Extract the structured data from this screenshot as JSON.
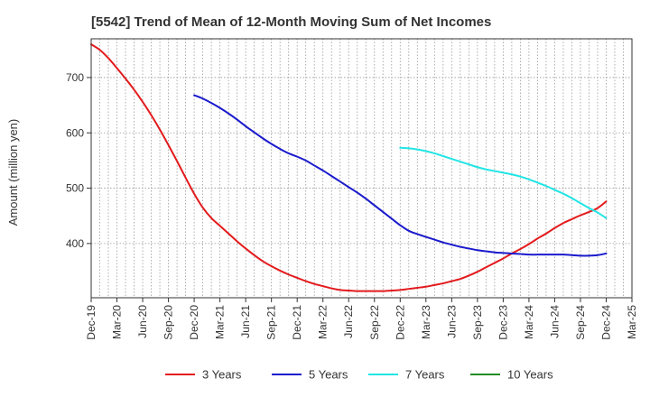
{
  "chart_data": {
    "type": "line",
    "title": "[5542]  Trend of Mean of 12-Month Moving Sum of Net Incomes",
    "xlabel": "",
    "ylabel": "Amount (million yen)",
    "x_tick_labels": [
      "Dec-19",
      "Mar-20",
      "Jun-20",
      "Sep-20",
      "Dec-20",
      "Mar-21",
      "Jun-21",
      "Sep-21",
      "Dec-21",
      "Mar-22",
      "Jun-22",
      "Sep-22",
      "Dec-22",
      "Mar-23",
      "Jun-23",
      "Sep-23",
      "Dec-23",
      "Mar-24",
      "Jun-24",
      "Sep-24",
      "Dec-24",
      "Mar-25"
    ],
    "xlim": [
      "Dec-19",
      "Mar-25"
    ],
    "y_ticks": [
      400,
      500,
      600,
      700
    ],
    "ylim": [
      302,
      770
    ],
    "grid": true,
    "legend_position": "bottom",
    "series": [
      {
        "name": "3 Years",
        "color": "#e31a1c",
        "x": [
          "Dec-19",
          "Jan-20",
          "Feb-20",
          "Mar-20",
          "Apr-20",
          "May-20",
          "Jun-20",
          "Jul-20",
          "Aug-20",
          "Sep-20",
          "Oct-20",
          "Nov-20",
          "Dec-20",
          "Jan-21",
          "Feb-21",
          "Mar-21",
          "Apr-21",
          "May-21",
          "Jun-21",
          "Jul-21",
          "Aug-21",
          "Sep-21",
          "Oct-21",
          "Nov-21",
          "Dec-21",
          "Jan-22",
          "Feb-22",
          "Mar-22",
          "Apr-22",
          "May-22",
          "Jun-22",
          "Jul-22",
          "Aug-22",
          "Sep-22",
          "Oct-22",
          "Nov-22",
          "Dec-22",
          "Jan-23",
          "Feb-23",
          "Mar-23",
          "Apr-23",
          "May-23",
          "Jun-23",
          "Jul-23",
          "Aug-23",
          "Sep-23",
          "Oct-23",
          "Nov-23",
          "Dec-23",
          "Jan-24",
          "Feb-24",
          "Mar-24",
          "Apr-24",
          "May-24",
          "Jun-24",
          "Jul-24",
          "Aug-24",
          "Sep-24",
          "Oct-24",
          "Nov-24",
          "Dec-24"
        ],
        "values": [
          760,
          750,
          735,
          717,
          698,
          678,
          656,
          632,
          606,
          578,
          549,
          519,
          490,
          465,
          446,
          432,
          418,
          404,
          391,
          379,
          368,
          359,
          351,
          344,
          338,
          332,
          327,
          323,
          319,
          316,
          315,
          314,
          314,
          314,
          314,
          315,
          316,
          318,
          320,
          322,
          325,
          328,
          332,
          336,
          342,
          349,
          357,
          365,
          373,
          382,
          390,
          399,
          409,
          418,
          428,
          437,
          444,
          451,
          457,
          464,
          476
        ]
      },
      {
        "name": "5 Years",
        "color": "#1a1acd",
        "x": [
          "Dec-20",
          "Jan-21",
          "Feb-21",
          "Mar-21",
          "Apr-21",
          "May-21",
          "Jun-21",
          "Jul-21",
          "Aug-21",
          "Sep-21",
          "Oct-21",
          "Nov-21",
          "Dec-21",
          "Jan-22",
          "Feb-22",
          "Mar-22",
          "Apr-22",
          "May-22",
          "Jun-22",
          "Jul-22",
          "Aug-22",
          "Sep-22",
          "Oct-22",
          "Nov-22",
          "Dec-22",
          "Jan-23",
          "Feb-23",
          "Mar-23",
          "Apr-23",
          "May-23",
          "Jun-23",
          "Jul-23",
          "Aug-23",
          "Sep-23",
          "Oct-23",
          "Nov-23",
          "Dec-23",
          "Jan-24",
          "Feb-24",
          "Mar-24",
          "Apr-24",
          "May-24",
          "Jun-24",
          "Jul-24",
          "Aug-24",
          "Sep-24",
          "Oct-24",
          "Nov-24",
          "Dec-24"
        ],
        "values": [
          668,
          662,
          654,
          645,
          635,
          624,
          612,
          601,
          590,
          580,
          571,
          563,
          557,
          550,
          541,
          532,
          522,
          512,
          502,
          492,
          481,
          469,
          457,
          445,
          433,
          423,
          417,
          412,
          407,
          402,
          398,
          394,
          391,
          388,
          386,
          384,
          383,
          382,
          381,
          380,
          380,
          380,
          380,
          380,
          379,
          378,
          378,
          379,
          382
        ]
      },
      {
        "name": "7 Years",
        "color": "#22e5e5",
        "x": [
          "Dec-22",
          "Jan-23",
          "Feb-23",
          "Mar-23",
          "Apr-23",
          "May-23",
          "Jun-23",
          "Jul-23",
          "Aug-23",
          "Sep-23",
          "Oct-23",
          "Nov-23",
          "Dec-23",
          "Jan-24",
          "Feb-24",
          "Mar-24",
          "Apr-24",
          "May-24",
          "Jun-24",
          "Jul-24",
          "Aug-24",
          "Sep-24",
          "Oct-24",
          "Nov-24",
          "Dec-24"
        ],
        "values": [
          573,
          572,
          570,
          567,
          563,
          558,
          553,
          548,
          543,
          538,
          534,
          531,
          528,
          525,
          521,
          516,
          510,
          504,
          497,
          490,
          482,
          473,
          464,
          456,
          446
        ]
      },
      {
        "name": "10 Years",
        "color": "#228b22",
        "x": [],
        "values": []
      }
    ]
  }
}
